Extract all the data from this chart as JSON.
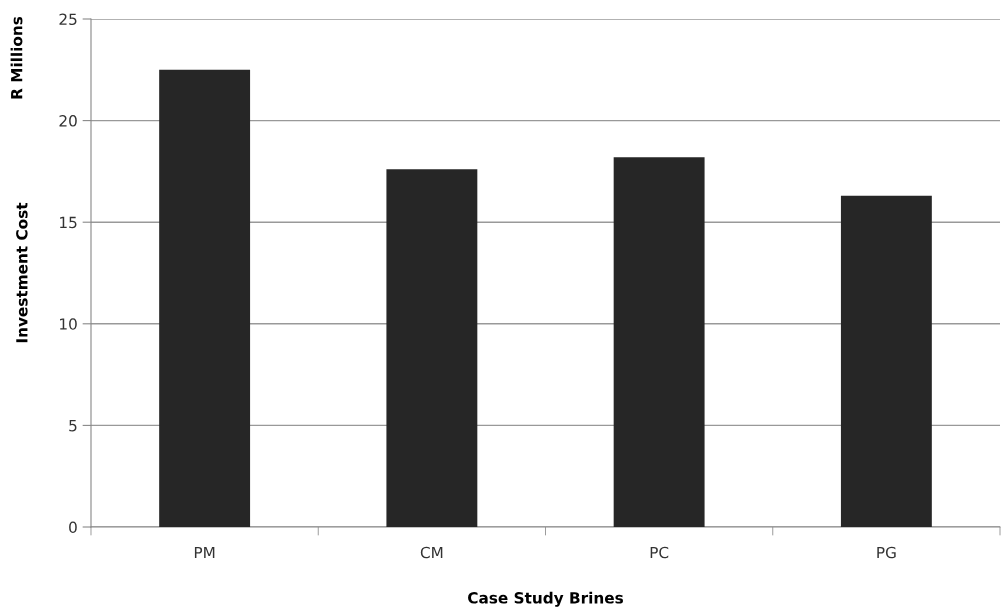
{
  "chart_data": {
    "type": "bar",
    "xlabel": "Case Study Brines",
    "ylabel": "Investment Cost",
    "annotations": [
      "R Millions"
    ],
    "categories": [
      "PM",
      "CM",
      "PC",
      "PG"
    ],
    "values": [
      22.5,
      17.6,
      18.2,
      16.3
    ],
    "color": "#262626",
    "ylim": [
      0,
      25
    ],
    "yticks": [
      0,
      5,
      10,
      15,
      20,
      25
    ],
    "grid": "y"
  }
}
